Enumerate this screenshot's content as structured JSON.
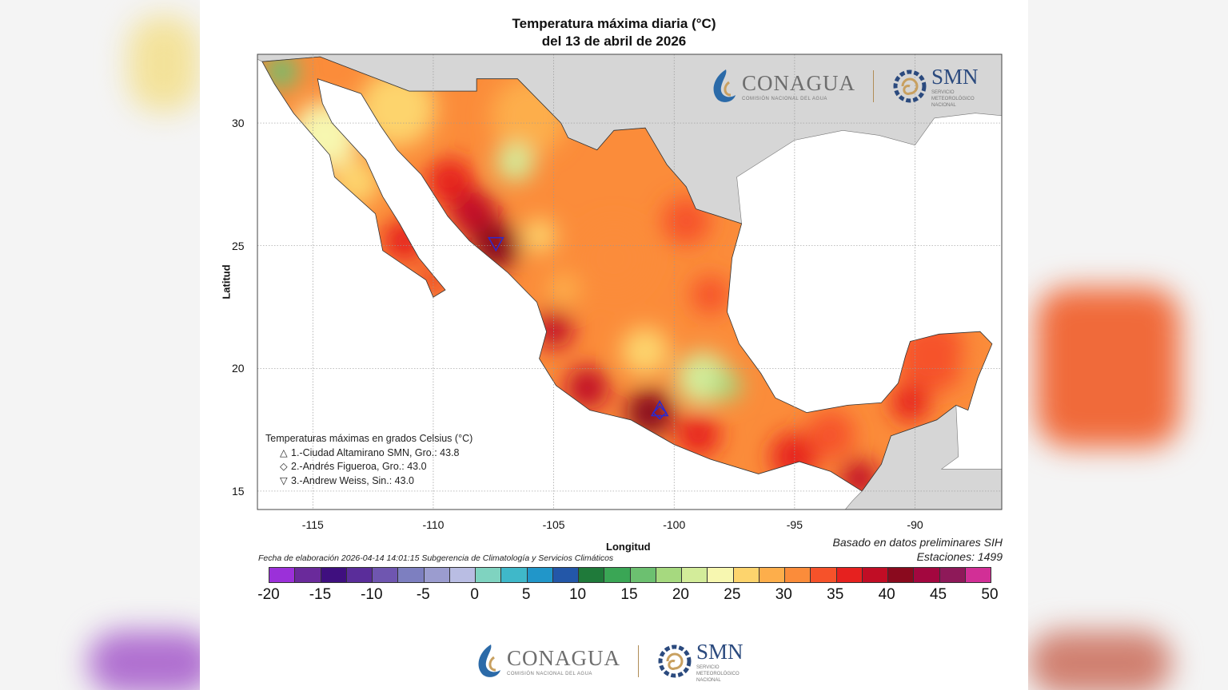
{
  "title": {
    "line1": "Temperatura máxima diaria (°C)",
    "line2": "del 13 de abril de 2026"
  },
  "axes": {
    "ylabel": "Latitud",
    "xlabel": "Longitud",
    "lat_ticks": [
      "30",
      "25",
      "20",
      "15"
    ],
    "lon_ticks": [
      "-115",
      "-110",
      "-105",
      "-100",
      "-95",
      "-90"
    ],
    "lon_range": [
      -117.3,
      -86.4
    ],
    "lat_range": [
      14.25,
      32.8
    ]
  },
  "legend": {
    "title": "Temperaturas máximas en grados Celsius (°C)",
    "stations": [
      {
        "symbol": "△",
        "marker": "triangle-up-icon",
        "label": "1.-Ciudad Altamirano SMN, Gro.: 43.8",
        "lon": -100.6,
        "lat": 18.3
      },
      {
        "symbol": "◇",
        "marker": "diamond-icon",
        "label": "2.-Andrés Figueroa, Gro.: 43.0",
        "lon": -100.6,
        "lat": 18.2
      },
      {
        "symbol": "▽",
        "marker": "triangle-down-icon",
        "label": "3.-Andrew Weiss, Sin.: 43.0",
        "lon": -107.4,
        "lat": 25.1
      }
    ]
  },
  "footer": {
    "elaboration": "Fecha de elaboración 2026-04-14 14:01:15 Subgerencia de Climatología y Servicios Climáticos",
    "source": "Basado en datos preliminares SIH",
    "stations": "Estaciones:  1499"
  },
  "colorbar": {
    "min": -20,
    "max": 50,
    "step": 2.5,
    "ticks": [
      "-20",
      "-15",
      "-10",
      "-5",
      "0",
      "5",
      "10",
      "15",
      "20",
      "25",
      "30",
      "35",
      "40",
      "45",
      "50"
    ],
    "colors": [
      "#9b30d9",
      "#6a2a9b",
      "#3f0f7f",
      "#5a2d9a",
      "#6f56b0",
      "#7d7fc0",
      "#9b9ccf",
      "#b9bde3",
      "#7fd3c0",
      "#3fb8c9",
      "#2196c9",
      "#2357a8",
      "#1f7a3a",
      "#3aa655",
      "#6cc070",
      "#a6d97f",
      "#d3ec9a",
      "#f7f7b0",
      "#fdd46d",
      "#fdae4b",
      "#fb8c3a",
      "#f6522a",
      "#e6211f",
      "#c10d25",
      "#8a0a1e",
      "#a3073f",
      "#8e1959",
      "#d22f96"
    ]
  },
  "logos": {
    "conagua": "CONAGUA",
    "conagua_sub": "COMISIÓN NACIONAL DEL AGUA",
    "smn": "SMN",
    "smn_sub": "SERVICIO METEOROLÓGICO NACIONAL"
  },
  "colors": {
    "land_outside": "#d6d6d6",
    "ocean": "#ffffff",
    "marker": "#2a2ad0"
  }
}
